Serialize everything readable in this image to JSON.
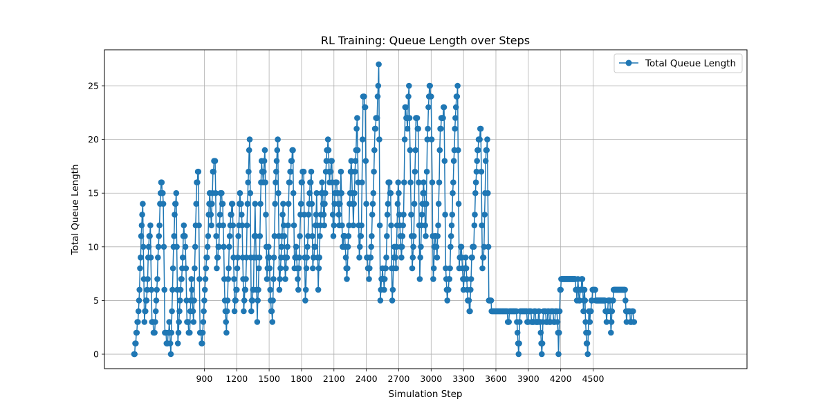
{
  "chart_data": {
    "type": "line",
    "title": "RL Training: Queue Length over Steps",
    "xlabel": "Simulation Step",
    "ylabel": "Total Queue Length",
    "xlim": [
      -25,
      5925
    ],
    "ylim": [
      -1.35,
      28.35
    ],
    "xticks": [
      900,
      1200,
      1500,
      1800,
      2100,
      2400,
      2700,
      3000,
      3300,
      3600,
      3900,
      4200,
      4500
    ],
    "yticks": [
      0,
      5,
      10,
      15,
      20,
      25
    ],
    "grid": true,
    "legend_position": "top-right",
    "series": [
      {
        "name": "Total Queue Length",
        "color": "#1f77b4",
        "marker": "circle",
        "sample_interval": 5,
        "anchors": [
          [
            250,
            0
          ],
          [
            265,
            1
          ],
          [
            285,
            3
          ],
          [
            300,
            6
          ],
          [
            315,
            11
          ],
          [
            330,
            14
          ],
          [
            345,
            3
          ],
          [
            370,
            6
          ],
          [
            385,
            10
          ],
          [
            400,
            12
          ],
          [
            415,
            3
          ],
          [
            440,
            2
          ],
          [
            460,
            6
          ],
          [
            480,
            11
          ],
          [
            500,
            16
          ],
          [
            520,
            14
          ],
          [
            535,
            2
          ],
          [
            560,
            1
          ],
          [
            575,
            3
          ],
          [
            590,
            0
          ],
          [
            605,
            6
          ],
          [
            625,
            13
          ],
          [
            640,
            15
          ],
          [
            655,
            1
          ],
          [
            675,
            5
          ],
          [
            695,
            8
          ],
          [
            710,
            12
          ],
          [
            725,
            10
          ],
          [
            740,
            3
          ],
          [
            765,
            2
          ],
          [
            780,
            7
          ],
          [
            800,
            3
          ],
          [
            815,
            10
          ],
          [
            830,
            16
          ],
          [
            845,
            17
          ],
          [
            860,
            2
          ],
          [
            880,
            1
          ],
          [
            900,
            5
          ],
          [
            915,
            8
          ],
          [
            930,
            10
          ],
          [
            950,
            15
          ],
          [
            965,
            12
          ],
          [
            980,
            17
          ],
          [
            1000,
            18
          ],
          [
            1015,
            8
          ],
          [
            1035,
            10
          ],
          [
            1050,
            15
          ],
          [
            1070,
            14
          ],
          [
            1090,
            5
          ],
          [
            1105,
            2
          ],
          [
            1120,
            7
          ],
          [
            1140,
            12
          ],
          [
            1160,
            14
          ],
          [
            1180,
            4
          ],
          [
            1200,
            6
          ],
          [
            1215,
            11
          ],
          [
            1230,
            15
          ],
          [
            1250,
            12
          ],
          [
            1265,
            4
          ],
          [
            1285,
            7
          ],
          [
            1300,
            14
          ],
          [
            1320,
            20
          ],
          [
            1335,
            4
          ],
          [
            1355,
            6
          ],
          [
            1370,
            14
          ],
          [
            1390,
            3
          ],
          [
            1410,
            9
          ],
          [
            1430,
            18
          ],
          [
            1445,
            16
          ],
          [
            1460,
            19
          ],
          [
            1480,
            7
          ],
          [
            1495,
            10
          ],
          [
            1515,
            5
          ],
          [
            1530,
            3
          ],
          [
            1545,
            9
          ],
          [
            1560,
            16
          ],
          [
            1580,
            20
          ],
          [
            1595,
            6
          ],
          [
            1615,
            10
          ],
          [
            1630,
            14
          ],
          [
            1650,
            7
          ],
          [
            1670,
            10
          ],
          [
            1685,
            16
          ],
          [
            1700,
            17
          ],
          [
            1720,
            19
          ],
          [
            1735,
            8
          ],
          [
            1750,
            10
          ],
          [
            1770,
            6
          ],
          [
            1785,
            11
          ],
          [
            1800,
            16
          ],
          [
            1820,
            17
          ],
          [
            1835,
            5
          ],
          [
            1855,
            10
          ],
          [
            1870,
            14
          ],
          [
            1890,
            17
          ],
          [
            1905,
            8
          ],
          [
            1925,
            10
          ],
          [
            1940,
            15
          ],
          [
            1955,
            6
          ],
          [
            1975,
            12
          ],
          [
            1990,
            16
          ],
          [
            2010,
            12
          ],
          [
            2025,
            17
          ],
          [
            2045,
            20
          ],
          [
            2060,
            16
          ],
          [
            2080,
            18
          ],
          [
            2095,
            11
          ],
          [
            2115,
            16
          ],
          [
            2135,
            15
          ],
          [
            2150,
            12
          ],
          [
            2165,
            17
          ],
          [
            2180,
            10
          ],
          [
            2200,
            11
          ],
          [
            2220,
            7
          ],
          [
            2240,
            12
          ],
          [
            2260,
            18
          ],
          [
            2280,
            12
          ],
          [
            2300,
            18
          ],
          [
            2315,
            22
          ],
          [
            2335,
            9
          ],
          [
            2355,
            12
          ],
          [
            2370,
            24
          ],
          [
            2390,
            23
          ],
          [
            2405,
            9
          ],
          [
            2425,
            7
          ],
          [
            2445,
            10
          ],
          [
            2465,
            15
          ],
          [
            2480,
            21
          ],
          [
            2500,
            22
          ],
          [
            2515,
            27
          ],
          [
            2530,
            5
          ],
          [
            2550,
            8
          ],
          [
            2565,
            6
          ],
          [
            2585,
            9
          ],
          [
            2605,
            16
          ],
          [
            2625,
            15
          ],
          [
            2640,
            5
          ],
          [
            2660,
            10
          ],
          [
            2675,
            8
          ],
          [
            2695,
            16
          ],
          [
            2710,
            12
          ],
          [
            2725,
            9
          ],
          [
            2745,
            13
          ],
          [
            2760,
            23
          ],
          [
            2780,
            21
          ],
          [
            2795,
            25
          ],
          [
            2810,
            16
          ],
          [
            2825,
            8
          ],
          [
            2840,
            11
          ],
          [
            2860,
            22
          ],
          [
            2880,
            21
          ],
          [
            2895,
            7
          ],
          [
            2910,
            12
          ],
          [
            2930,
            16
          ],
          [
            2950,
            11
          ],
          [
            2965,
            20
          ],
          [
            2985,
            25
          ],
          [
            3000,
            24
          ],
          [
            3020,
            7
          ],
          [
            3035,
            11
          ],
          [
            3055,
            9
          ],
          [
            3070,
            14
          ],
          [
            3085,
            21
          ],
          [
            3105,
            22
          ],
          [
            3120,
            23
          ],
          [
            3135,
            8
          ],
          [
            3150,
            5
          ],
          [
            3170,
            7
          ],
          [
            3190,
            12
          ],
          [
            3205,
            16
          ],
          [
            3225,
            22
          ],
          [
            3245,
            25
          ],
          [
            3260,
            8
          ],
          [
            3280,
            10
          ],
          [
            3300,
            6
          ],
          [
            3320,
            9
          ],
          [
            3340,
            5
          ],
          [
            3360,
            4
          ],
          [
            3375,
            9
          ],
          [
            3395,
            10
          ],
          [
            3415,
            16
          ],
          [
            3430,
            19
          ],
          [
            3445,
            20
          ],
          [
            3460,
            21
          ],
          [
            3475,
            8
          ],
          [
            3490,
            10
          ],
          [
            3505,
            18
          ],
          [
            3520,
            20
          ],
          [
            3535,
            5
          ],
          [
            3550,
            5
          ],
          [
            3565,
            4
          ],
          [
            3585,
            4
          ],
          [
            3600,
            4
          ],
          [
            3620,
            4
          ],
          [
            3640,
            4
          ],
          [
            3660,
            4
          ],
          [
            3680,
            4
          ],
          [
            3700,
            4
          ],
          [
            3715,
            3
          ],
          [
            3730,
            4
          ],
          [
            3745,
            4
          ],
          [
            3760,
            4
          ],
          [
            3775,
            4
          ],
          [
            3790,
            4
          ],
          [
            3800,
            2
          ],
          [
            3810,
            0
          ],
          [
            3825,
            4
          ],
          [
            3845,
            4
          ],
          [
            3860,
            4
          ],
          [
            3880,
            4
          ],
          [
            3895,
            3
          ],
          [
            3915,
            4
          ],
          [
            3935,
            3
          ],
          [
            3950,
            3
          ],
          [
            3960,
            4
          ],
          [
            3975,
            3
          ],
          [
            3990,
            3
          ],
          [
            4000,
            4
          ],
          [
            4015,
            2
          ],
          [
            4025,
            0
          ],
          [
            4040,
            4
          ],
          [
            4055,
            4
          ],
          [
            4070,
            3
          ],
          [
            4085,
            4
          ],
          [
            4100,
            3
          ],
          [
            4120,
            4
          ],
          [
            4140,
            3
          ],
          [
            4160,
            4
          ],
          [
            4170,
            3
          ],
          [
            4180,
            0
          ],
          [
            4195,
            6
          ],
          [
            4210,
            7
          ],
          [
            4230,
            7
          ],
          [
            4250,
            7
          ],
          [
            4270,
            7
          ],
          [
            4290,
            7
          ],
          [
            4310,
            7
          ],
          [
            4330,
            7
          ],
          [
            4340,
            6
          ],
          [
            4350,
            5
          ],
          [
            4360,
            7
          ],
          [
            4370,
            5
          ],
          [
            4385,
            6
          ],
          [
            4400,
            7
          ],
          [
            4410,
            4
          ],
          [
            4420,
            6
          ],
          [
            4430,
            3
          ],
          [
            4440,
            1
          ],
          [
            4450,
            0
          ],
          [
            4460,
            4
          ],
          [
            4470,
            3
          ],
          [
            4485,
            5
          ],
          [
            4500,
            6
          ],
          [
            4515,
            6
          ],
          [
            4530,
            5
          ],
          [
            4545,
            5
          ],
          [
            4560,
            5
          ],
          [
            4580,
            5
          ],
          [
            4595,
            5
          ],
          [
            4610,
            5
          ],
          [
            4625,
            3
          ],
          [
            4640,
            5
          ],
          [
            4655,
            5
          ],
          [
            4665,
            2
          ],
          [
            4680,
            5
          ],
          [
            4695,
            6
          ],
          [
            4710,
            6
          ],
          [
            4730,
            6
          ],
          [
            4750,
            6
          ],
          [
            4770,
            6
          ],
          [
            4790,
            6
          ],
          [
            4800,
            5
          ],
          [
            4810,
            3
          ],
          [
            4820,
            4
          ],
          [
            4835,
            4
          ],
          [
            4850,
            3
          ],
          [
            4865,
            4
          ],
          [
            4880,
            3
          ]
        ]
      }
    ]
  }
}
